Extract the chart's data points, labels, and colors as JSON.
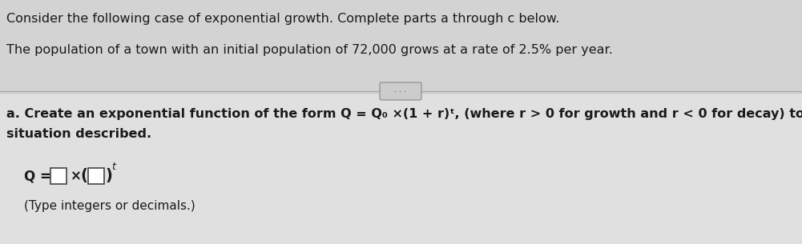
{
  "bg_top": "#d8d8d8",
  "bg_bottom": "#e8e8e8",
  "line1": "Consider the following case of exponential growth. Complete parts a through c below.",
  "line2": "The population of a town with an initial population of 72,000 grows at a rate of 2.5% per year.",
  "part_a_text": "a. Create an exponential function of the form Q = Q₀ ×(1 + r)ᵗ, (where r > 0 for growth and r < 0 for decay) to model the",
  "part_a_text2": "situation described.",
  "formula_prefix": "Q =",
  "times_sym": "×",
  "exponent": "t",
  "type_note": "(Type integers or decimals.)",
  "text_color": "#1a1a1a",
  "font_size": 11.5,
  "font_size_formula": 12,
  "font_size_note": 11
}
